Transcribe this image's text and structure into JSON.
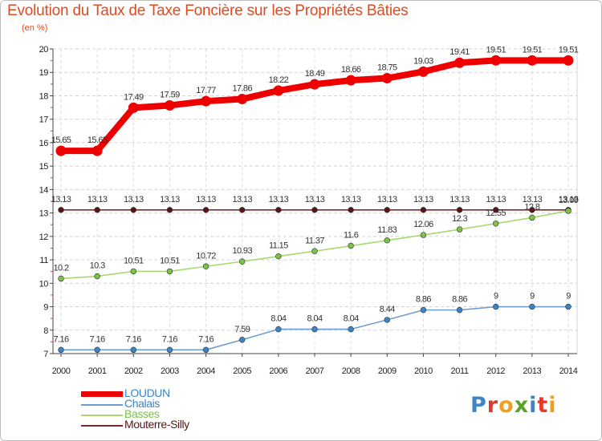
{
  "title": "Evolution du Taux de Taxe Foncière sur les Propriétés Bâties",
  "unit_label": "(en %)",
  "logo": {
    "text": "Proxiti",
    "letter_colors": [
      "#3a86c8",
      "#e03a2a",
      "#f0a020",
      "#5aa02c",
      "#3a86c8",
      "#e03a2a",
      "#f0a020"
    ]
  },
  "chart_data": {
    "type": "line",
    "title": "Evolution du Taux de Taxe Foncière sur les Propriétés Bâties",
    "ylabel": "(en %)",
    "xlabel": "",
    "x": [
      "2000",
      "2001",
      "2002",
      "2003",
      "2004",
      "2005",
      "2006",
      "2007",
      "2008",
      "2009",
      "2010",
      "2011",
      "2012",
      "2013",
      "2014"
    ],
    "ylim": [
      7,
      20
    ],
    "yticks": [
      7,
      8,
      9,
      10,
      11,
      12,
      13,
      14,
      15,
      16,
      17,
      18,
      19,
      20
    ],
    "grid": true,
    "legend_position": "bottom-left",
    "series": [
      {
        "name": "LOUDUN",
        "color": "#ee0000",
        "style": "thick",
        "values": [
          15.65,
          15.65,
          17.49,
          17.59,
          17.77,
          17.86,
          18.22,
          18.49,
          18.66,
          18.75,
          19.03,
          19.41,
          19.51,
          19.51,
          19.51
        ],
        "labels": [
          "15.65",
          "15.65",
          "17.49",
          "17.59",
          "17.77",
          "17.86",
          "18.22",
          "18.49",
          "18.66",
          "18.75",
          "19.03",
          "19.41",
          "19.51",
          "19.51",
          "19.51"
        ]
      },
      {
        "name": "Chalais",
        "color": "#6c9ed0",
        "marker": "#3d84c6",
        "style": "thin",
        "values": [
          7.16,
          7.16,
          7.16,
          7.16,
          7.16,
          7.59,
          8.04,
          8.04,
          8.04,
          8.44,
          8.86,
          8.86,
          9,
          9,
          9
        ],
        "labels": [
          "7.16",
          "7.16",
          "7.16",
          "7.16",
          "7.16",
          "7.59",
          "8.04",
          "8.04",
          "8.04",
          "8.44",
          "8.86",
          "8.86",
          "9",
          "9",
          "9"
        ]
      },
      {
        "name": "Basses",
        "color": "#a8d870",
        "marker": "#7cc24a",
        "style": "thin",
        "values": [
          10.2,
          10.3,
          10.51,
          10.51,
          10.72,
          10.93,
          11.15,
          11.37,
          11.6,
          11.83,
          12.06,
          12.3,
          12.55,
          12.8,
          13.09
        ],
        "labels": [
          "10.2",
          "10.3",
          "10.51",
          "10.51",
          "10.72",
          "10.93",
          "11.15",
          "11.37",
          "11.6",
          "11.83",
          "12.06",
          "12.3",
          "12.55",
          "12.8",
          "13.09"
        ]
      },
      {
        "name": "Mouterre-Silly",
        "color": "#7a2a2a",
        "marker": "#5a1414",
        "style": "thin",
        "values": [
          13.13,
          13.13,
          13.13,
          13.13,
          13.13,
          13.13,
          13.13,
          13.13,
          13.13,
          13.13,
          13.13,
          13.13,
          13.13,
          13.13,
          13.13
        ],
        "labels": [
          "13.13",
          "13.13",
          "13.13",
          "13.13",
          "13.13",
          "13.13",
          "13.13",
          "13.13",
          "13.13",
          "13.13",
          "13.13",
          "13.13",
          "13.13",
          "13.13",
          "13.13"
        ]
      }
    ]
  }
}
